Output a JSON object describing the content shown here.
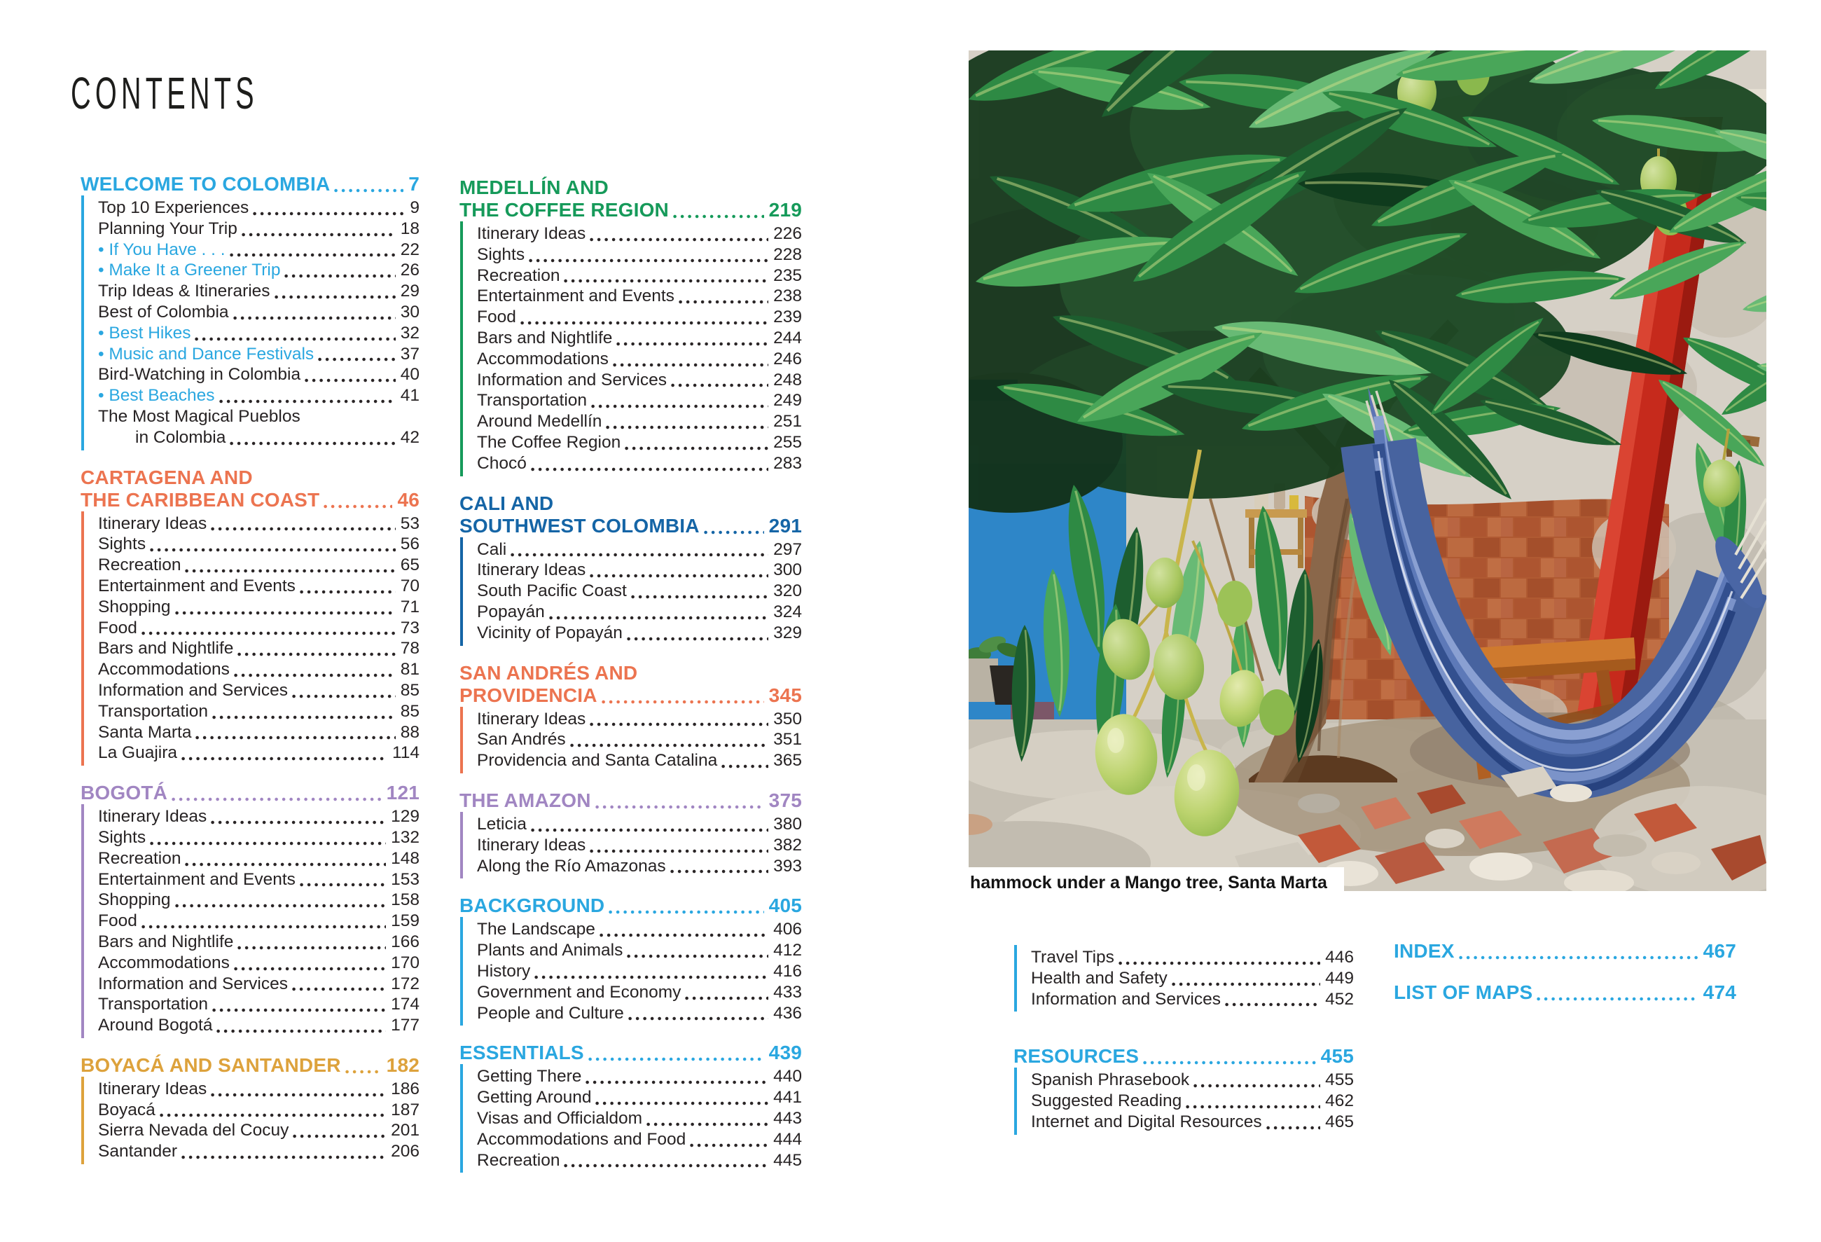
{
  "page_title": "CONTENTS",
  "photo": {
    "caption": "hammock under a Mango tree, Santa Marta"
  },
  "colors": {
    "light_blue": "#2aa7e0",
    "orange": "#ec7450",
    "purple": "#a186c2",
    "gold": "#dda23c",
    "green": "#169a5a",
    "dark_blue": "#1565a6",
    "text": "#272324"
  },
  "toc": {
    "columns": [
      {
        "id": "col1",
        "sections": [
          {
            "color": "light_blue",
            "title": "WELCOME TO COLOMBIA",
            "page": "7",
            "items": [
              {
                "label": "Top 10 Experiences",
                "page": "9"
              },
              {
                "label": "Planning Your Trip",
                "page": "18"
              },
              {
                "label": "If You Have . . .",
                "page": "22",
                "bullet": true
              },
              {
                "label": "Make It a Greener Trip",
                "page": "26",
                "bullet": true
              },
              {
                "label": "Trip Ideas & Itineraries",
                "page": "29"
              },
              {
                "label": "Best of Colombia",
                "page": "30"
              },
              {
                "label": "Best Hikes",
                "page": "32",
                "bullet": true
              },
              {
                "label": "Music and Dance Festivals",
                "page": "37",
                "bullet": true
              },
              {
                "label": "Bird-Watching in Colombia",
                "page": "40"
              },
              {
                "label": "Best Beaches",
                "page": "41",
                "bullet": true
              },
              {
                "label": "The Most Magical Pueblos",
                "label2": "in Colombia",
                "page": "42"
              }
            ]
          },
          {
            "color": "orange",
            "title_line1": "CARTAGENA AND",
            "title": "THE CARIBBEAN COAST",
            "page": "46",
            "items": [
              {
                "label": "Itinerary Ideas",
                "page": "53"
              },
              {
                "label": "Sights",
                "page": "56"
              },
              {
                "label": "Recreation",
                "page": "65"
              },
              {
                "label": "Entertainment and Events",
                "page": "70"
              },
              {
                "label": "Shopping",
                "page": "71"
              },
              {
                "label": "Food",
                "page": "73"
              },
              {
                "label": "Bars and Nightlife",
                "page": "78"
              },
              {
                "label": "Accommodations",
                "page": "81"
              },
              {
                "label": "Information and Services",
                "page": "85"
              },
              {
                "label": "Transportation",
                "page": "85"
              },
              {
                "label": "Santa Marta",
                "page": "88"
              },
              {
                "label": "La Guajira",
                "page": "114"
              }
            ]
          },
          {
            "color": "purple",
            "title": "BOGOTÁ",
            "page": "121",
            "items": [
              {
                "label": "Itinerary Ideas",
                "page": "129"
              },
              {
                "label": "Sights",
                "page": "132"
              },
              {
                "label": "Recreation",
                "page": "148"
              },
              {
                "label": "Entertainment and Events",
                "page": "153"
              },
              {
                "label": "Shopping",
                "page": "158"
              },
              {
                "label": "Food",
                "page": "159"
              },
              {
                "label": "Bars and Nightlife",
                "page": "166"
              },
              {
                "label": "Accommodations",
                "page": "170"
              },
              {
                "label": "Information and Services",
                "page": "172"
              },
              {
                "label": "Transportation",
                "page": "174"
              },
              {
                "label": "Around Bogotá",
                "page": "177"
              }
            ]
          },
          {
            "color": "gold",
            "title": "BOYACÁ AND SANTANDER",
            "page": "182",
            "items": [
              {
                "label": "Itinerary Ideas",
                "page": "186"
              },
              {
                "label": "Boyacá",
                "page": "187"
              },
              {
                "label": "Sierra Nevada del Cocuy",
                "page": "201"
              },
              {
                "label": "Santander",
                "page": "206"
              }
            ]
          }
        ]
      },
      {
        "id": "col2",
        "sections": [
          {
            "color": "green",
            "title_line1": "MEDELLÍN AND",
            "title": "THE COFFEE REGION",
            "page": "219",
            "items": [
              {
                "label": "Itinerary Ideas",
                "page": "226"
              },
              {
                "label": "Sights",
                "page": "228"
              },
              {
                "label": "Recreation",
                "page": "235"
              },
              {
                "label": "Entertainment and Events",
                "page": "238"
              },
              {
                "label": "Food",
                "page": "239"
              },
              {
                "label": "Bars and Nightlife",
                "page": "244"
              },
              {
                "label": "Accommodations",
                "page": "246"
              },
              {
                "label": "Information and Services",
                "page": "248"
              },
              {
                "label": "Transportation",
                "page": "249"
              },
              {
                "label": "Around Medellín",
                "page": "251"
              },
              {
                "label": "The Coffee Region",
                "page": "255"
              },
              {
                "label": "Chocó",
                "page": "283"
              }
            ]
          },
          {
            "color": "dark_blue",
            "title_line1": "CALI AND",
            "title": "SOUTHWEST COLOMBIA",
            "page": "291",
            "items": [
              {
                "label": "Cali",
                "page": "297"
              },
              {
                "label": "Itinerary Ideas",
                "page": "300"
              },
              {
                "label": "South Pacific Coast",
                "page": "320"
              },
              {
                "label": "Popayán",
                "page": "324"
              },
              {
                "label": "Vicinity of Popayán",
                "page": "329"
              }
            ]
          },
          {
            "color": "orange",
            "title_line1": "SAN ANDRÉS AND",
            "title": "PROVIDENCIA",
            "page": "345",
            "items": [
              {
                "label": "Itinerary Ideas",
                "page": "350"
              },
              {
                "label": "San Andrés",
                "page": "351"
              },
              {
                "label": "Providencia and Santa Catalina",
                "page": "365"
              }
            ]
          },
          {
            "color": "purple",
            "title": "THE AMAZON",
            "page": "375",
            "items": [
              {
                "label": "Leticia",
                "page": "380"
              },
              {
                "label": "Itinerary Ideas",
                "page": "382"
              },
              {
                "label": "Along the Río Amazonas",
                "page": "393"
              }
            ]
          },
          {
            "color": "light_blue",
            "title": "BACKGROUND",
            "page": "405",
            "items": [
              {
                "label": "The Landscape",
                "page": "406"
              },
              {
                "label": "Plants and Animals",
                "page": "412"
              },
              {
                "label": "History",
                "page": "416"
              },
              {
                "label": "Government and Economy",
                "page": "433"
              },
              {
                "label": "People and Culture",
                "page": "436"
              }
            ]
          },
          {
            "color": "light_blue",
            "title": "ESSENTIALS",
            "page": "439",
            "items": [
              {
                "label": "Getting There",
                "page": "440"
              },
              {
                "label": "Getting Around",
                "page": "441"
              },
              {
                "label": "Visas and Officialdom",
                "page": "443"
              },
              {
                "label": "Accommodations and Food",
                "page": "444"
              },
              {
                "label": "Recreation",
                "page": "445"
              }
            ]
          }
        ]
      },
      {
        "id": "col3",
        "sections": [
          {
            "color": "light_blue",
            "items": [
              {
                "label": "Travel Tips",
                "page": "446"
              },
              {
                "label": "Health and Safety",
                "page": "449"
              },
              {
                "label": "Information and Services",
                "page": "452"
              }
            ]
          },
          {
            "color": "light_blue",
            "title": "RESOURCES",
            "page": "455",
            "items": [
              {
                "label": "Spanish Phrasebook",
                "page": "455"
              },
              {
                "label": "Suggested Reading",
                "page": "462"
              },
              {
                "label": "Internet and Digital Resources",
                "page": "465"
              }
            ]
          }
        ]
      },
      {
        "id": "col4",
        "sections": [
          {
            "color": "light_blue",
            "title": "INDEX",
            "page": "467"
          },
          {
            "color": "light_blue",
            "title": "LIST OF MAPS",
            "page": "474"
          }
        ]
      }
    ]
  }
}
